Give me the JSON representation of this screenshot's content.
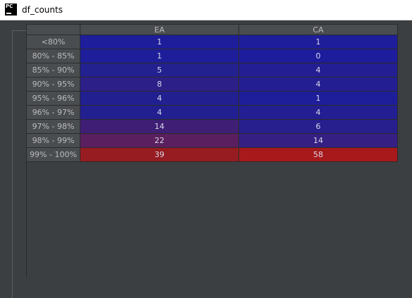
{
  "window": {
    "title": "df_counts",
    "app_icon_label": "PC"
  },
  "table": {
    "columns": [
      "",
      "EA",
      "CA"
    ],
    "rows": [
      {
        "label": "<80%",
        "EA": "1",
        "CA": "1",
        "EA_color": "#1e1e9a",
        "CA_color": "#1e1e9a"
      },
      {
        "label": "80% - 85%",
        "EA": "1",
        "CA": "0",
        "EA_color": "#1e1e9a",
        "CA_color": "#1c1c9c"
      },
      {
        "label": "85% - 90%",
        "EA": "5",
        "CA": "4",
        "EA_color": "#23208f",
        "CA_color": "#231f93"
      },
      {
        "label": "90% - 95%",
        "EA": "8",
        "CA": "4",
        "EA_color": "#2c1f88",
        "CA_color": "#231f93"
      },
      {
        "label": "95% - 96%",
        "EA": "4",
        "CA": "1",
        "EA_color": "#221f90",
        "CA_color": "#1e1e9a"
      },
      {
        "label": "96% - 97%",
        "EA": "4",
        "CA": "4",
        "EA_color": "#221f90",
        "CA_color": "#231f93"
      },
      {
        "label": "97% - 98%",
        "EA": "14",
        "CA": "6",
        "EA_color": "#3e1f75",
        "CA_color": "#271f8d"
      },
      {
        "label": "98% - 99%",
        "EA": "22",
        "CA": "14",
        "EA_color": "#5a1f5e",
        "CA_color": "#351f83"
      },
      {
        "label": "99% - 100%",
        "EA": "39",
        "CA": "58",
        "EA_color": "#971c22",
        "CA_color": "#a8191b"
      }
    ]
  }
}
